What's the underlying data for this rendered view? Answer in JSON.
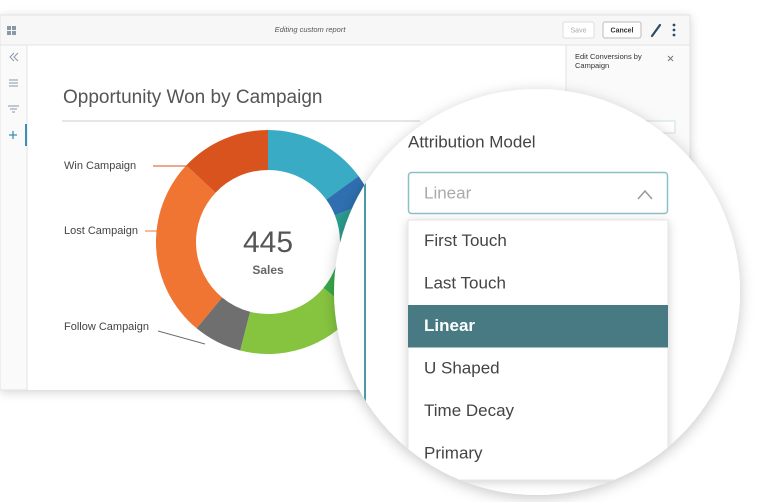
{
  "toolbar": {
    "title": "Editing custom report",
    "save": "Save",
    "cancel": "Cancel"
  },
  "side_panel": {
    "title": "Edit Conversions by Campaign"
  },
  "report": {
    "title": "Opportunity Won by Campaign",
    "total": 445,
    "total_label": "Sales",
    "labels": [
      "Win Campaign",
      "Lost Campaign",
      "Follow Campaign"
    ],
    "segments": [
      {
        "value": 15,
        "color": "#3aabc4"
      },
      {
        "value": 4,
        "color": "#2f6fb0"
      },
      {
        "value": 13,
        "color": "#2a9d8f"
      },
      {
        "value": 4,
        "color": "#3aa84a"
      },
      {
        "value": 18,
        "color": "#86c440"
      },
      {
        "value": 7,
        "color": "#6f6f6f"
      },
      {
        "value": 26,
        "color": "#f07432"
      },
      {
        "value": 13,
        "color": "#d9531e"
      }
    ]
  },
  "attribution": {
    "label": "Attribution Model",
    "selected": "Linear",
    "options": [
      "First Touch",
      "Last Touch",
      "Linear",
      "U Shaped",
      "Time Decay",
      "Primary"
    ]
  }
}
